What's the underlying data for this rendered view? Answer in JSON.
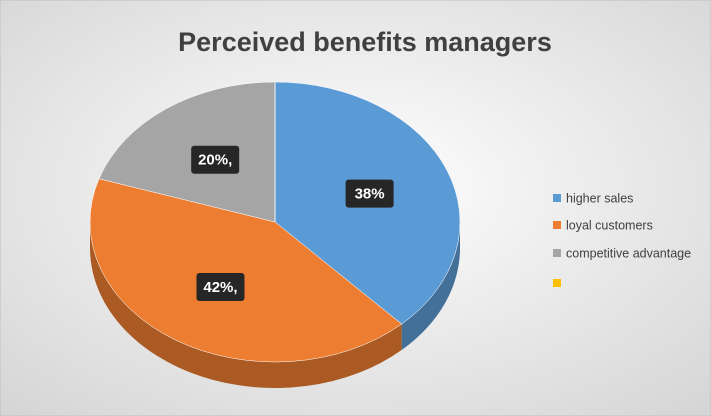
{
  "chart_data": {
    "type": "pie",
    "title": "Perceived benefits managers",
    "categories": [
      "higher sales",
      "loyal customers",
      "competitive advantage",
      null
    ],
    "values": [
      38,
      42,
      20,
      0
    ],
    "value_labels": [
      "38%",
      "42%,",
      "20%,",
      null
    ],
    "colors": [
      "#5b9bd5",
      "#ed7d31",
      "#a5a5a5",
      "#ffc000"
    ],
    "legend": "right"
  }
}
